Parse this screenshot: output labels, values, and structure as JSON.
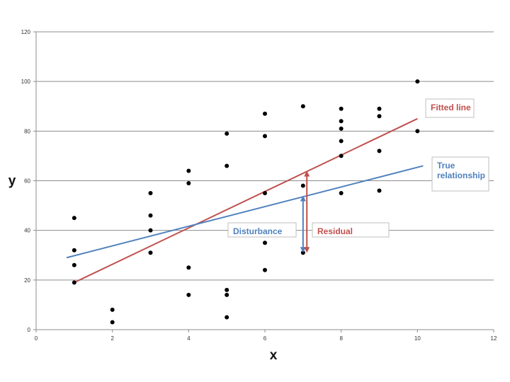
{
  "chart_data": {
    "type": "scatter",
    "xlabel": "x",
    "ylabel": "y",
    "xlim": [
      0,
      12
    ],
    "ylim": [
      0,
      120
    ],
    "x_ticks": [
      0,
      2,
      4,
      6,
      8,
      10,
      12
    ],
    "y_ticks": [
      0,
      20,
      40,
      60,
      80,
      100,
      120
    ],
    "grid": "horizontal",
    "series": [
      {
        "type": "scatter",
        "color": "#000000",
        "points": [
          [
            1,
            45
          ],
          [
            1,
            32
          ],
          [
            1,
            26
          ],
          [
            1,
            19
          ],
          [
            2,
            8
          ],
          [
            2,
            3
          ],
          [
            3,
            55
          ],
          [
            3,
            46
          ],
          [
            3,
            40
          ],
          [
            3,
            31
          ],
          [
            4,
            64
          ],
          [
            4,
            59
          ],
          [
            4,
            25
          ],
          [
            4,
            14
          ],
          [
            5,
            79
          ],
          [
            5,
            66
          ],
          [
            5,
            16
          ],
          [
            5,
            14
          ],
          [
            5,
            5
          ],
          [
            6,
            87
          ],
          [
            6,
            78
          ],
          [
            6,
            55
          ],
          [
            6,
            35
          ],
          [
            6,
            24
          ],
          [
            7,
            90
          ],
          [
            7,
            58
          ],
          [
            7,
            31
          ],
          [
            8,
            89
          ],
          [
            8,
            84
          ],
          [
            8,
            81
          ],
          [
            8,
            76
          ],
          [
            8,
            70
          ],
          [
            8,
            55
          ],
          [
            9,
            89
          ],
          [
            9,
            86
          ],
          [
            9,
            72
          ],
          [
            9,
            56
          ],
          [
            10,
            100
          ],
          [
            10,
            80
          ]
        ]
      },
      {
        "type": "line",
        "name": "Fitted line",
        "color": "#c0504d",
        "x": [
          1,
          10
        ],
        "y": [
          19,
          85
        ]
      },
      {
        "type": "line",
        "name": "True relationship",
        "color": "#4f81bd",
        "x": [
          0.8,
          10.15
        ],
        "y": [
          29,
          66
        ]
      }
    ],
    "annotations": [
      {
        "name": "disturbance",
        "label": "Disturbance",
        "color": "#4f81bd",
        "x": 7,
        "y_from": 31,
        "y_to": 54
      },
      {
        "name": "residual",
        "label": "Residual",
        "color": "#c0504d",
        "x": 7.1,
        "y_from": 31,
        "y_to": 64
      }
    ]
  }
}
